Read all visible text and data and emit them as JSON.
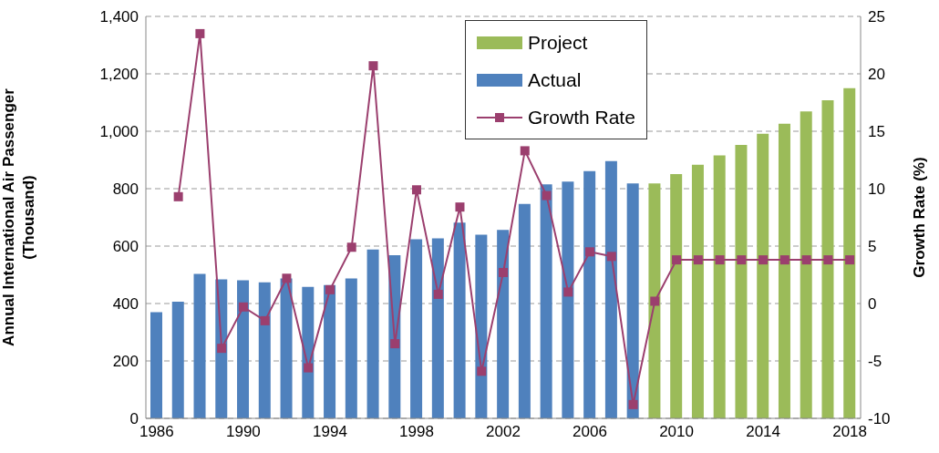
{
  "chart_data": {
    "type": "bar",
    "categories": [
      "1986",
      null,
      null,
      null,
      "1990",
      null,
      null,
      null,
      "1994",
      null,
      null,
      null,
      "1998",
      null,
      null,
      null,
      "2002",
      null,
      null,
      null,
      "2006",
      null,
      null,
      null,
      "2010",
      null,
      null,
      null,
      "2014",
      null,
      null,
      null,
      "2018"
    ],
    "series": [
      {
        "name": "Project",
        "color": "#9bbb59",
        "values": [
          null,
          null,
          null,
          null,
          null,
          null,
          null,
          null,
          null,
          null,
          null,
          null,
          null,
          null,
          null,
          null,
          null,
          null,
          null,
          null,
          null,
          null,
          null,
          818,
          851,
          883,
          916,
          952,
          991,
          1026,
          1069,
          1108,
          1150
        ]
      },
      {
        "name": "Actual",
        "color": "#4f81bd",
        "values": [
          370,
          406,
          503,
          484,
          481,
          474,
          487,
          458,
          464,
          487,
          588,
          568,
          624,
          627,
          682,
          640,
          656,
          747,
          815,
          825,
          861,
          896,
          818,
          null,
          null,
          null,
          null,
          null,
          null,
          null,
          null,
          null,
          null
        ]
      },
      {
        "name": "Growth Rate",
        "type": "line",
        "axis": "y2",
        "color": "#9b3f6e",
        "values": [
          null,
          9.3,
          23.5,
          -3.9,
          -0.3,
          -1.5,
          2.2,
          -5.6,
          1.2,
          4.9,
          20.7,
          -3.5,
          9.9,
          0.8,
          8.4,
          -5.9,
          2.7,
          13.3,
          9.4,
          1.0,
          4.5,
          4.1,
          -8.8,
          0.2,
          3.8,
          3.8,
          3.8,
          3.8,
          3.8,
          3.8,
          3.8,
          3.8,
          3.8
        ]
      }
    ],
    "ylabel": "Annual International Air Passenger\n(Thousand)",
    "y2label": "Growth Rate (%)",
    "ylim": [
      0,
      1400
    ],
    "yticks": [
      0,
      200,
      400,
      600,
      800,
      {
        "value": 1000,
        "label": "1,000"
      },
      {
        "value": 1200,
        "label": "1,200"
      },
      {
        "value": 1400,
        "label": "1,400"
      }
    ],
    "y2lim": [
      -10,
      25
    ],
    "y2ticks": [
      -10,
      -5,
      0,
      5,
      10,
      15,
      20,
      25
    ],
    "grid": "y",
    "legend": "top",
    "marker": "square",
    "line_style": "solid"
  }
}
